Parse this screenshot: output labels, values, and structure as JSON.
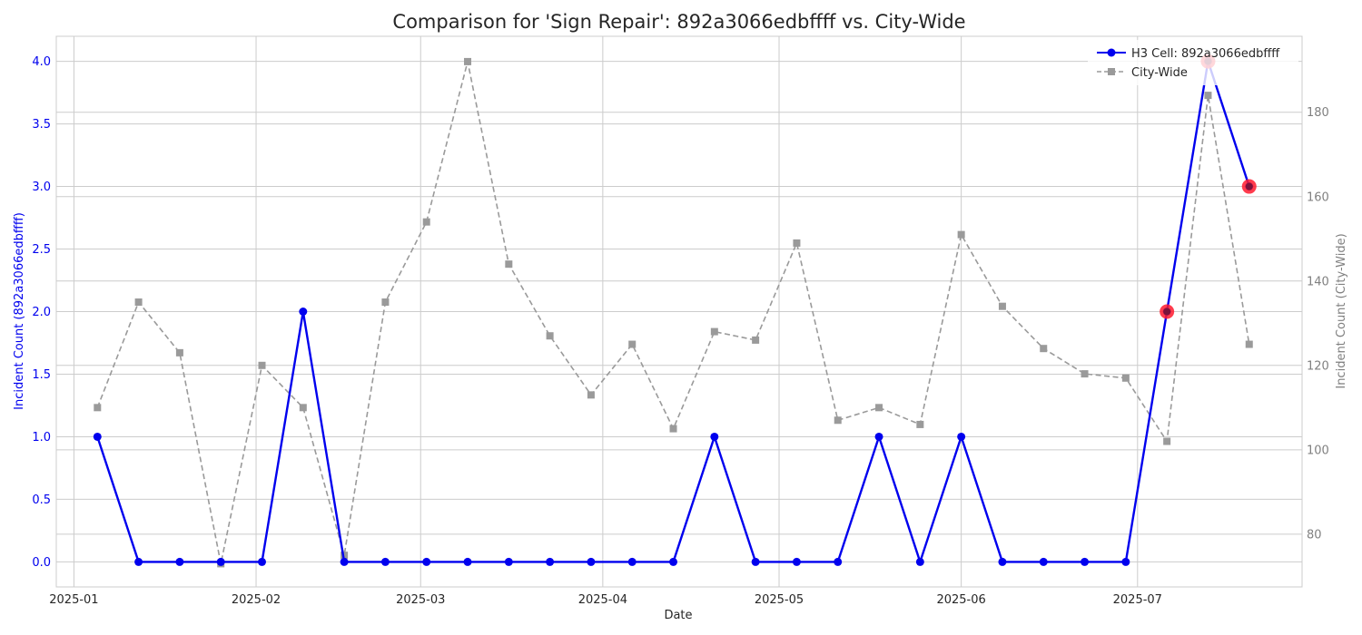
{
  "chart_data": {
    "type": "line",
    "title": "Comparison for 'Sign Repair': 892a3066edbffff vs. City-Wide",
    "xlabel": "Date",
    "ylabel_left": "Incident Count (892a3066edbffff)",
    "ylabel_right": "Incident Count (City-Wide)",
    "x_ticks": [
      "2025-01",
      "2025-02",
      "2025-03",
      "2025-04",
      "2025-05",
      "2025-06",
      "2025-07"
    ],
    "left_ticks": [
      "0.0",
      "0.5",
      "1.0",
      "1.5",
      "2.0",
      "2.5",
      "3.0",
      "3.5",
      "4.0"
    ],
    "right_ticks": [
      "80",
      "100",
      "120",
      "140",
      "160",
      "180"
    ],
    "ylim_left": [
      -0.2,
      4.2
    ],
    "ylim_right": [
      67.5,
      198
    ],
    "xlim": [
      "2024-12-29",
      "2025-07-29"
    ],
    "grid": true,
    "legend_position": "top-right",
    "colors": {
      "cell": "#0000ee",
      "city": "#9a9a9a",
      "highlight": "#ff1a2e",
      "left_axis_text": "#0000ee",
      "right_axis_text": "#808080"
    },
    "x": [
      "2025-01-05",
      "2025-01-12",
      "2025-01-19",
      "2025-01-26",
      "2025-02-02",
      "2025-02-09",
      "2025-02-16",
      "2025-02-23",
      "2025-03-02",
      "2025-03-09",
      "2025-03-16",
      "2025-03-23",
      "2025-03-30",
      "2025-04-06",
      "2025-04-13",
      "2025-04-20",
      "2025-04-27",
      "2025-05-04",
      "2025-05-11",
      "2025-05-18",
      "2025-05-25",
      "2025-06-01",
      "2025-06-08",
      "2025-06-15",
      "2025-06-22",
      "2025-06-29",
      "2025-07-06",
      "2025-07-13",
      "2025-07-20"
    ],
    "series": [
      {
        "name": "H3 Cell: 892a3066edbffff",
        "axis": "left",
        "style": "solid-circle",
        "values": [
          1,
          0,
          0,
          0,
          0,
          2,
          0,
          0,
          0,
          0,
          0,
          0,
          0,
          0,
          0,
          1,
          0,
          0,
          0,
          1,
          0,
          1,
          0,
          0,
          0,
          0,
          2,
          4,
          3
        ]
      },
      {
        "name": "City-Wide",
        "axis": "right",
        "style": "dashed-square",
        "values": [
          110,
          135,
          123,
          73,
          120,
          110,
          75,
          135,
          154,
          192,
          144,
          127,
          113,
          125,
          105,
          128,
          126,
          149,
          107,
          110,
          106,
          151,
          134,
          124,
          118,
          117,
          102,
          184,
          125
        ]
      }
    ],
    "highlighted_indices": [
      26,
      27,
      28
    ]
  }
}
